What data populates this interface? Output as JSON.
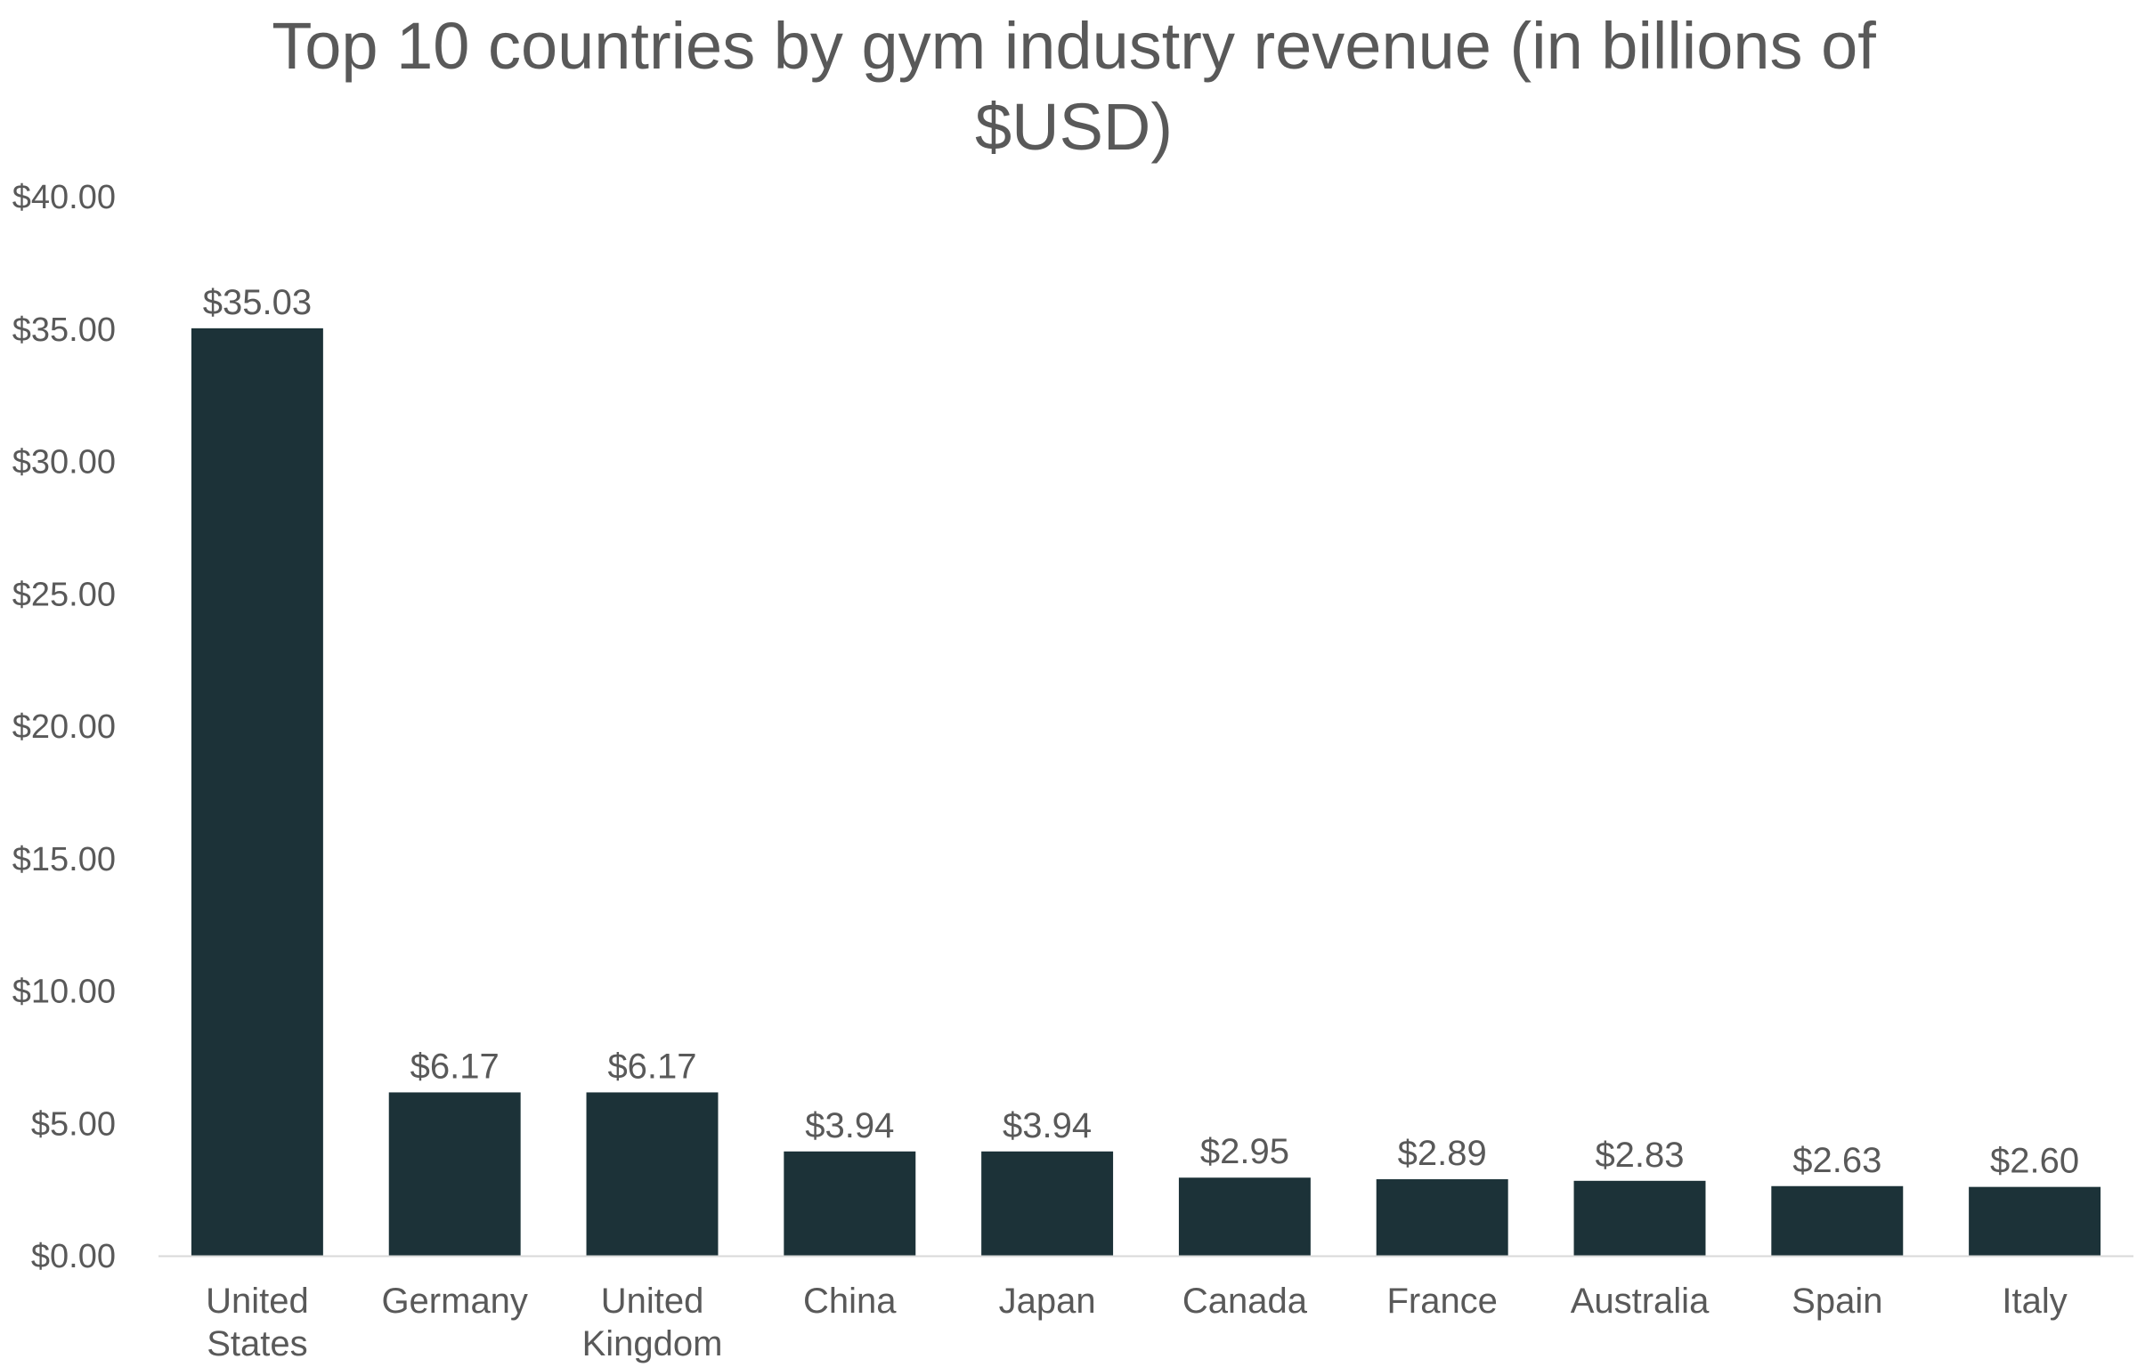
{
  "chart_data": {
    "type": "bar",
    "title_lines": [
      "Top 10 countries by gym industry revenue (in billions of",
      "$USD)"
    ],
    "xlabel": "",
    "ylabel": "",
    "ylim": [
      0,
      40
    ],
    "y_ticks": [
      0,
      5,
      10,
      15,
      20,
      25,
      30,
      35,
      40
    ],
    "y_tick_labels": [
      "$0.00",
      "$5.00",
      "$10.00",
      "$15.00",
      "$20.00",
      "$25.00",
      "$30.00",
      "$35.00",
      "$40.00"
    ],
    "grid": false,
    "legend": "none",
    "bar_color": "#1c3238",
    "axis_color": "#d9d9d9",
    "text_color": "#595959",
    "categories": [
      [
        "United",
        "States"
      ],
      [
        "Germany"
      ],
      [
        "United",
        "Kingdom"
      ],
      [
        "China"
      ],
      [
        "Japan"
      ],
      [
        "Canada"
      ],
      [
        "France"
      ],
      [
        "Australia"
      ],
      [
        "Spain"
      ],
      [
        "Italy"
      ]
    ],
    "values": [
      35.03,
      6.17,
      6.17,
      3.94,
      3.94,
      2.95,
      2.89,
      2.83,
      2.63,
      2.6
    ],
    "value_labels": [
      "$35.03",
      "$6.17",
      "$6.17",
      "$3.94",
      "$3.94",
      "$2.95",
      "$2.89",
      "$2.83",
      "$2.63",
      "$2.60"
    ]
  }
}
